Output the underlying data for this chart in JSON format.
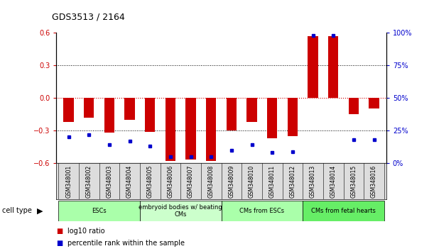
{
  "title": "GDS3513 / 2164",
  "samples": [
    "GSM348001",
    "GSM348002",
    "GSM348003",
    "GSM348004",
    "GSM348005",
    "GSM348006",
    "GSM348007",
    "GSM348008",
    "GSM348009",
    "GSM348010",
    "GSM348011",
    "GSM348012",
    "GSM348013",
    "GSM348014",
    "GSM348015",
    "GSM348016"
  ],
  "log10_ratio": [
    -0.22,
    -0.18,
    -0.32,
    -0.2,
    -0.31,
    -0.58,
    -0.57,
    -0.58,
    -0.3,
    -0.22,
    -0.37,
    -0.35,
    0.57,
    0.57,
    -0.15,
    -0.1
  ],
  "percentile_rank": [
    20,
    22,
    14,
    17,
    13,
    5,
    5,
    5,
    10,
    14,
    8,
    9,
    98,
    98,
    18,
    18
  ],
  "ylim_left": [
    -0.6,
    0.6
  ],
  "ylim_right": [
    0,
    100
  ],
  "yticks_left": [
    -0.6,
    -0.3,
    0.0,
    0.3,
    0.6
  ],
  "yticks_right": [
    0,
    25,
    50,
    75,
    100
  ],
  "bar_color": "#CC0000",
  "square_color": "#0000CC",
  "cell_type_groups": [
    {
      "label": "ESCs",
      "start": 0,
      "end": 3,
      "color": "#AAFFAA"
    },
    {
      "label": "embryoid bodies w/ beating\nCMs",
      "start": 4,
      "end": 7,
      "color": "#CCFFCC"
    },
    {
      "label": "CMs from ESCs",
      "start": 8,
      "end": 11,
      "color": "#AAFFAA"
    },
    {
      "label": "CMs from fetal hearts",
      "start": 12,
      "end": 15,
      "color": "#66EE66"
    }
  ],
  "legend_items": [
    {
      "label": "log10 ratio",
      "color": "#CC0000"
    },
    {
      "label": "percentile rank within the sample",
      "color": "#0000CC"
    }
  ],
  "hline_0_color": "#CC0000",
  "hline_dotted_color": "#000000",
  "bg_color": "#FFFFFF",
  "plot_bg_color": "#FFFFFF",
  "xlim": [
    -0.6,
    15.6
  ],
  "bar_width": 0.5
}
